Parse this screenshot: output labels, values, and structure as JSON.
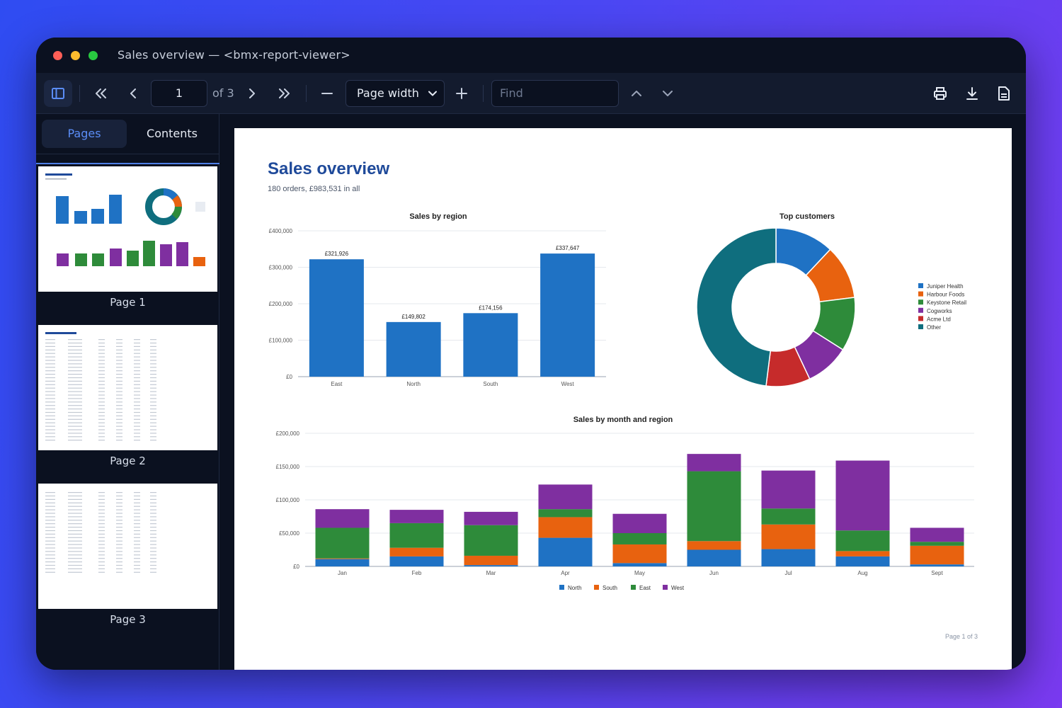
{
  "window": {
    "title": "Sales overview — <bmx-report-viewer>"
  },
  "toolbar": {
    "page_value": "1",
    "page_count_label": "of 3",
    "zoom_value": "Page width",
    "find_placeholder": "Find",
    "icons": [
      "sidebar-toggle-icon",
      "first-page-icon",
      "previous-page-icon",
      "next-page-icon",
      "last-page-icon",
      "zoom-out-icon",
      "zoom-in-icon",
      "find-previous-icon",
      "find-next-icon",
      "print-icon",
      "download-icon",
      "document-properties-icon"
    ]
  },
  "sidebar": {
    "tabs": [
      {
        "label": "Pages",
        "active": true
      },
      {
        "label": "Contents",
        "active": false
      }
    ],
    "thumbnails": [
      {
        "label": "Page 1",
        "active": true
      },
      {
        "label": "Page 2",
        "active": false
      },
      {
        "label": "Page 3",
        "active": false
      }
    ]
  },
  "page": {
    "title": "Sales overview",
    "subtitle": "180 orders, £983,531 in all",
    "footer": "Page 1 of 3"
  },
  "colors": {
    "north": "#1f72c4",
    "south": "#e8620f",
    "east": "#2e8b3a",
    "west": "#7f2fa0",
    "accent": "#1f4a9a"
  },
  "chart_data": [
    {
      "type": "bar",
      "title": "Sales by region",
      "categories": [
        "East",
        "North",
        "South",
        "West"
      ],
      "values": [
        321926,
        149802,
        174156,
        337647
      ],
      "value_labels": [
        "£321,926",
        "£149,802",
        "£174,156",
        "£337,647"
      ],
      "ylim": [
        0,
        400000
      ],
      "yticks": [
        "£0",
        "£100,000",
        "£200,000",
        "£300,000",
        "£400,000"
      ],
      "grid": true
    },
    {
      "type": "pie",
      "title": "Top customers",
      "labels": [
        "Juniper Health",
        "Harbour Foods",
        "Keystone Retail",
        "Cogworks",
        "Acme Ltd",
        "Other"
      ],
      "values": [
        12,
        11,
        11,
        9,
        9,
        48
      ],
      "colors": [
        "#1f72c4",
        "#e8620f",
        "#2e8b3a",
        "#7f2fa0",
        "#c62b2b",
        "#0f6e7e"
      ],
      "legend": "right"
    },
    {
      "type": "bar",
      "stacked": true,
      "title": "Sales by month and region",
      "categories": [
        "Jan",
        "Feb",
        "Mar",
        "Apr",
        "May",
        "Jun",
        "Jul",
        "Aug",
        "Sept"
      ],
      "series": [
        {
          "name": "North",
          "values": [
            11000,
            15000,
            2000,
            43000,
            5000,
            25000,
            26000,
            15000,
            3000
          ]
        },
        {
          "name": "South",
          "values": [
            1000,
            13000,
            14000,
            31000,
            28000,
            13000,
            37000,
            8000,
            28000
          ]
        },
        {
          "name": "East",
          "values": [
            46000,
            37000,
            46000,
            12000,
            17000,
            105000,
            24000,
            31000,
            6000
          ]
        },
        {
          "name": "West",
          "values": [
            28000,
            20000,
            20000,
            37000,
            29000,
            26000,
            57000,
            105000,
            21000
          ]
        }
      ],
      "ylim": [
        0,
        200000
      ],
      "yticks": [
        "£0",
        "£50,000",
        "£100,000",
        "£150,000",
        "£200,000"
      ],
      "grid": true,
      "legend": "bottom"
    }
  ]
}
